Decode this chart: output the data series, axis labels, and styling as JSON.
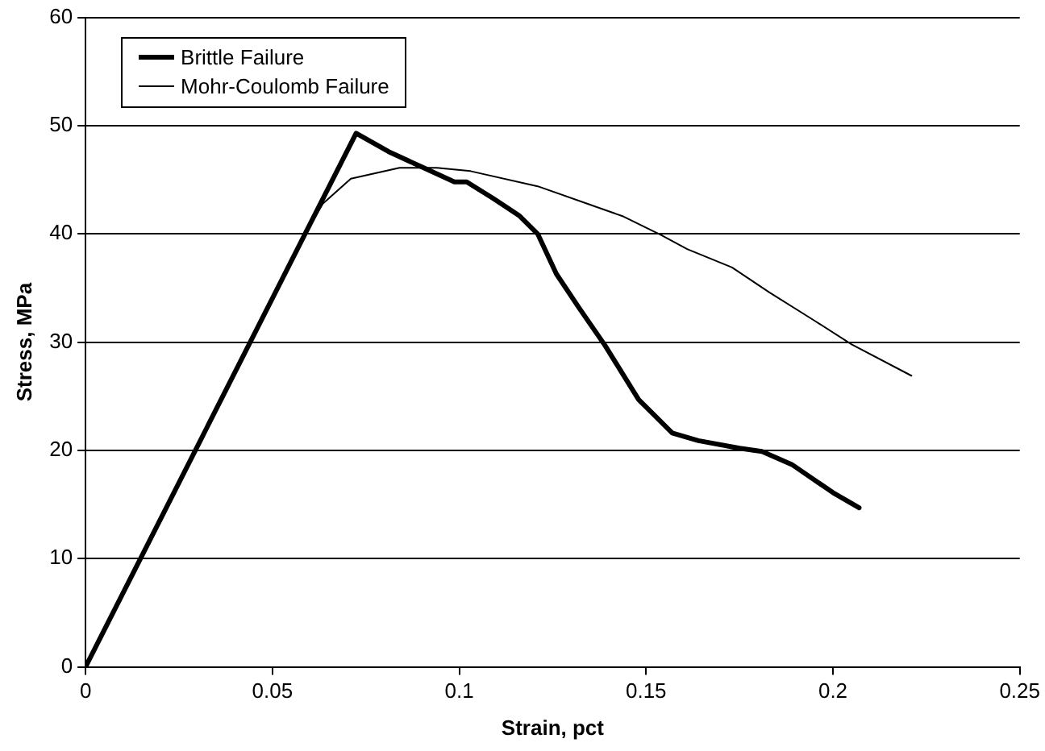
{
  "chart_data": {
    "type": "line",
    "xlabel": "Strain, pct",
    "ylabel": "Stress, MPa",
    "xlim": [
      0,
      0.25
    ],
    "xticks": [
      0,
      0.05,
      0.1,
      0.15,
      0.2,
      0.25
    ],
    "ylim": [
      0,
      60
    ],
    "yticks": [
      0,
      10,
      20,
      30,
      40,
      50,
      60
    ],
    "grid": "y",
    "legend": "top left",
    "marker": "none",
    "series": [
      {
        "name": "Brittle Failure",
        "color": "#000000",
        "x": [
          0,
          0.0724,
          0.0811,
          0.0899,
          0.0987,
          0.102,
          0.109,
          0.116,
          0.121,
          0.126,
          0.132,
          0.139,
          0.148,
          0.157,
          0.164,
          0.175,
          0.181,
          0.189,
          0.2,
          0.207
        ],
        "values": [
          0,
          49.3,
          47.6,
          46.2,
          44.8,
          44.8,
          43.3,
          41.7,
          40.0,
          36.3,
          33.2,
          29.7,
          24.7,
          21.6,
          20.9,
          20.2,
          19.9,
          18.7,
          16.1,
          14.7
        ]
      },
      {
        "name": "Mohr-Coulomb Failure",
        "color": "#000000",
        "x": [
          0,
          0.058,
          0.0635,
          0.071,
          0.084,
          0.094,
          0.103,
          0.121,
          0.135,
          0.144,
          0.154,
          0.161,
          0.173,
          0.183,
          0.195,
          0.205,
          0.221
        ],
        "values": [
          0,
          39.5,
          42.8,
          45.1,
          46.1,
          46.1,
          45.8,
          44.4,
          42.7,
          41.6,
          39.9,
          38.6,
          36.9,
          34.6,
          32.0,
          29.8,
          26.9
        ]
      }
    ]
  }
}
